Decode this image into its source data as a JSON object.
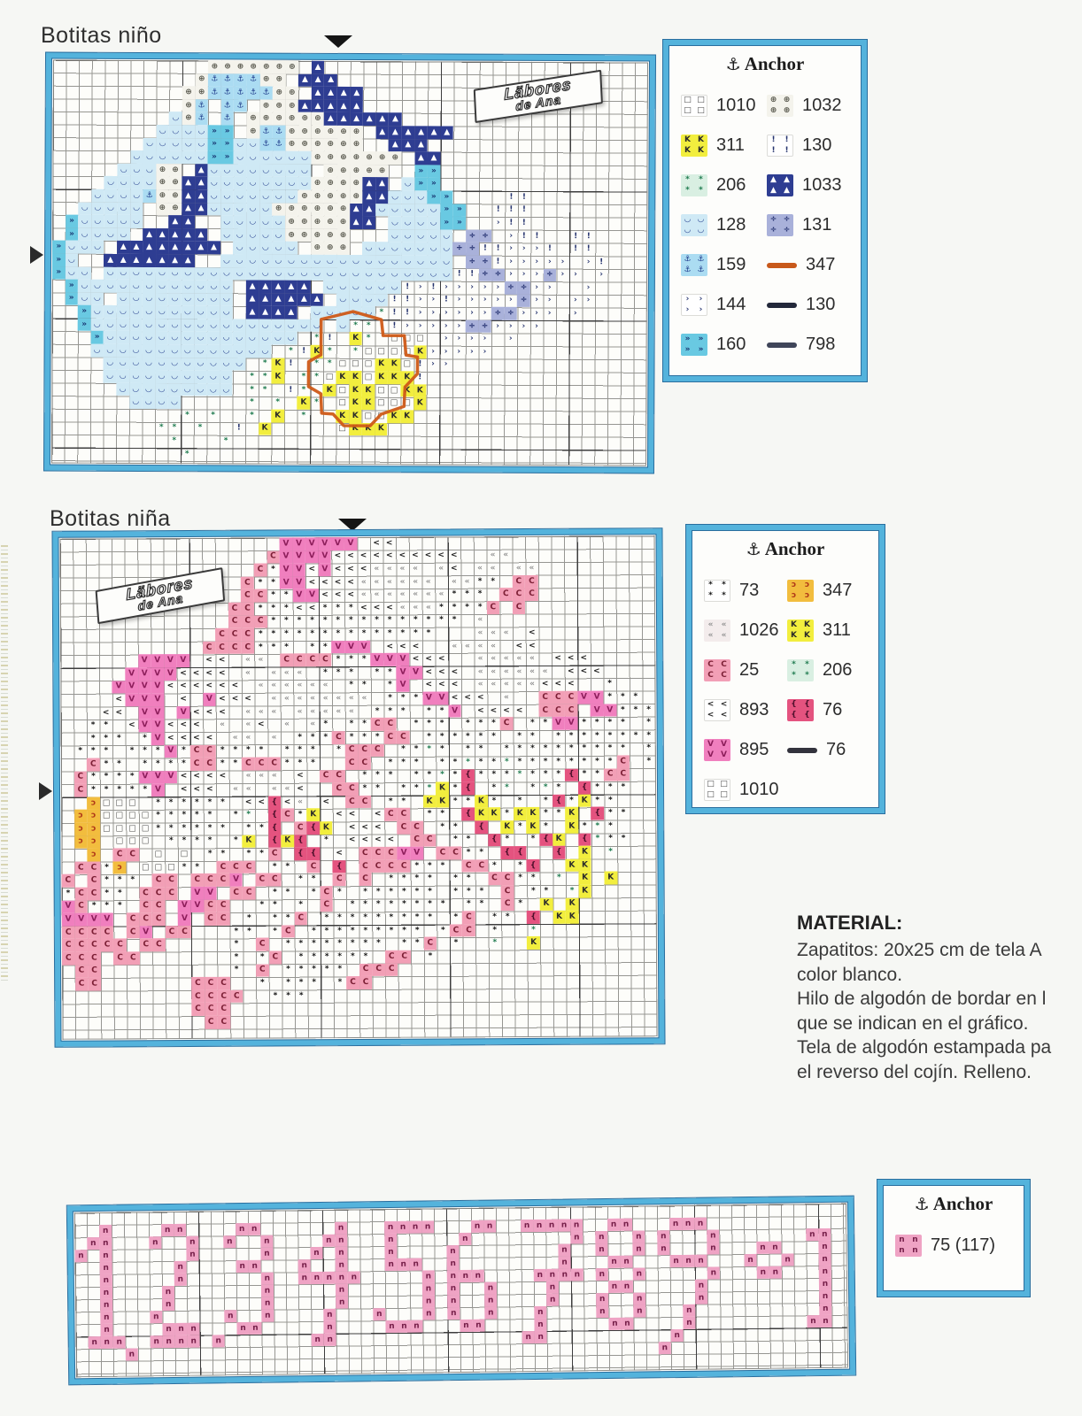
{
  "brand": {
    "line1": "Läbores",
    "line2": "de Ana"
  },
  "material": {
    "heading": "MATERIAL:",
    "lines": [
      "Zapatitos: 20x25 cm de tela A",
      "color blanco.",
      "Hilo de algodón de bordar en l",
      "que se indican en el gráfico.",
      "Tela de algodón estampada pa",
      "el reverso del cojín. Relleno."
    ]
  },
  "palettes": {
    "p1": {
      "s": {
        "bg": "#cfe9f5",
        "fg": "#27418f",
        "ch": "◡"
      },
      "a": {
        "bg": "#abdcf2",
        "fg": "#1d3a8a",
        "ch": "⚓"
      },
      "c": {
        "bg": "#69c9e2",
        "fg": "#17336f",
        "ch": "»"
      },
      "t": {
        "bg": "#2e3d92",
        "fg": "#ffffff",
        "ch": "▲"
      },
      "g": {
        "bg": "#f4f3ec",
        "fg": "#55554a",
        "ch": "⊕"
      },
      "d": {
        "bg": "#a9b1da",
        "fg": "#1d2a6a",
        "ch": "÷"
      },
      "e": {
        "fg": "#27356f",
        "ch": "!"
      },
      "r": {
        "fg": "#27356f",
        "ch": "›"
      },
      "k": {
        "bg": "#f2ee3e",
        "fg": "#2a2a2a",
        "ch": "K"
      },
      "q": {
        "fg": "#4a4a4a",
        "ch": "□"
      },
      "z": {
        "fg": "#1d7a4e",
        "ch": "*",
        "lbg": "#d9efe2"
      }
    },
    "p2": {
      "C": {
        "bg": "#f29fb6",
        "fg": "#7c1f35",
        "ch": "C"
      },
      "V": {
        "bg": "#f07fbe",
        "fg": "#8c1d5a",
        "ch": "V"
      },
      "<": {
        "fg": "#1f1f1f",
        "ch": "<"
      },
      "«": {
        "fg": "#8e8e8e",
        "ch": "«",
        "lbg": "#f3ecec"
      },
      "*": {
        "fg": "#141414",
        "ch": "*"
      },
      "f": {
        "bg": "#e4537f",
        "fg": "#4c0f2a",
        "ch": "{"
      },
      "k": {
        "bg": "#f2ee3e",
        "fg": "#2a2a2a",
        "ch": "K"
      },
      "y": {
        "bg": "#f2bd3e",
        "fg": "#b03818",
        "ch": "ɔ"
      },
      "q": {
        "fg": "#4a4a4a",
        "ch": "□"
      },
      "z": {
        "fg": "#1d7a4e",
        "ch": "*",
        "lbg": "#d9efe2"
      }
    },
    "p3": {
      "n": {
        "bg": "#efa3c4",
        "fg": "#77204a",
        "ch": "n"
      }
    }
  },
  "charts": {
    "nino": {
      "title": "Botitas niño",
      "cols": 46,
      "rows": 31,
      "cell": 14.6,
      "palette": "p1",
      "grid": [
        "............ggggggg.t",
        "...........gaaaagg.ttt",
        "..........ggaaaaagg.tttt",
        "..........ga.aa.gggttttt",
        ".........sga.a.ggggggtttttt",
        "........sssscc.gaagggggg.tttttt",
        ".......sssssccssaagggggg..ttt",
        "......ssssssccssssssggggggg.tt",
        ".....sssgg.tssssssss.ggggg..cc",
        "....ssssggttssssssssggggtt.scc",
        "...ssssaggttsssssssgggggttssscc....ee",
        "..sssss.ggttsssssggggggttssssscc..eee",
        ".csssss..tt..sssssgggggtt.sssscc..ree",
        ".cssss.ttttt.sssssggggg...sssss.dd.ree..ee",
        "csss.tttttttt.sssss.ggg.sssssssddeerrre.ee",
        "cs..ttttttt..ssssssssssssssssss.dderrrrr.re",
        "css.ssssssssssssssssssssssssssseeddrrrdrr.r",
        ".cssssssssssss.ttttt.ssssssererrrrrddrr..r",
        ".css.sssssssss.tttttt.sssseerrerrrrrdrr.rr",
        "..csssssssssss.tttt.ssssszeerrrrrrddrrr.r",
        "..cssssssssssssssssss.szz.errrrrddrrrr",
        "...csssssssssssssss.ze.kz.qqq.rrrr.r",
        "...ssssssssssssss.zekz.zqqqqkrrrrr",
        "....sssssssssss.zke.zzqqqkkqerr",
        "....ssssssssss.zzk.zzqkkqkkke",
        ".....sssssssss.zz.ez.kqkkqqkk",
        "......ssss.....z.z.kz.qkkqqqk",
        "..........z.z..z.k.z..kkqqkk",
        "........zz.z..e.k.....qkkk",
        ".........z...z",
        "..........z"
      ]
    },
    "nina": {
      "title": "Botitas niña",
      "cols": 46,
      "rows": 38,
      "cell": 14.6,
      "palette": "p2",
      "grid": [
        ".................VVVVVV.<<",
        "................CVVVV<<<<<<<<<<..««",
        "...............C*VV<V<<<««««.«<.««.««",
        "..............C**VV<<<<««««««.««**.CC",
        "..............CC**VV<<<«««««««***.CCC",
        ".............CC***<<***<<<«««****C.C",
        ".............CCC***************.«",
        "............CCC**************...«««.<",
        "...........CCCC***.**VVV.<<<..««««.<<",
        "......VVVV.<<.««.CCCC***VVV<<<..«««««.<<<",
        ".....VVVV<<<<.«.«««.***.**VV<<<.««««««.<<<",
        "....VVVV<<<<<<.««««««.**.*V.<<<.«««««<<<..*",
        "....<VVV.<.V<<<.««««««««.***VV<<<.«..CCCVV***",
        "...<<.VV.V<<<.«««.«««««.***.**V.<<<<.CCC.VV***",
        "..**.<VV<<<.«.«<.«.«*.**CC.***.***C.**VV****.*",
        "..***.*V<<<<.««.«.***C***CC.******.**.********",
        ".***.***V*CC****.***.*CCC.**z*.**.**********.*",
        "..C**.****CC**CCC***..CC.***.**z**z********C.*",
        ".C****VVV<<<<.«««.<.CC.***.**z*f***z***f**CC",
        ".C*****V.<<<.««.««<..CC**.**zk*f.*z.*z*.f***",
        "..yqqq.******.<<f<«.<.CC.**.kk**k*.*.*f*k**",
        ".yyqqqq*****.*z.fC*k.<<.<CC.**.fkk*kk**k.f**",
        ".yyqqqq******.**f.Cfk.<<<.CC.**.f.k*k*.k*z*",
        ".yy.qqq.****.*k.fkf.*.<<<<.CC.**.f*.*fk.fz**",
        "..y.CC.q.q.**.**C.ff.<.CCCVV.CC**.ff..f.k.z",
        ".CC*y.qqq**.CCC.**.C.f.CCCC***.CC*.*f..kk",
        "C.C***.CC.CCCV.CC.**.C.C.****.**.CC**.z.k.k",
        "*CC**.CCC.VV.CC.**.*C*.******.***.C.**.zk",
        "VC***.CC.VVCC..**.*.C.********.**.C*.k.k",
        "VVVV.CCC.V.CC.*.**C.*********.*C.**.f.kk",
        "CCCC.CV.CC...**.*C.*********.*CC.*..z",
        "CCCCC.CC.....*.C.********.**C.*..z..k",
        "CCC.CC.......*.*C.******.CC.*",
        ".CC..........*.C.*****.CCC",
        ".CC.......CCC..*.***.*CC",
        "..........CCCC..***",
        "..........CCC",
        "...........CC"
      ]
    },
    "numbers": {
      "title": "",
      "cols": 62,
      "rows": 13,
      "cell": 14,
      "palette": "p3",
      "grid": [
        "",
        "..n....nn....nn......n...nnnn...nn..nnnnn..nn...nnn",
        ".nn...n..n..n..n....nn...n.....n........n.n..n.n...n.......nn",
        "n.n......n.....n...n.n...n....n........n..n..n.n...n...nn...n",
        "..n.....n....nn...n..n...nnn..n........n...nn...nnn...n..n..n",
        "..n.....n......n..nnnnn.....n.nnn....nnnn.n..n.....n...nn...n",
        "..n....n.......n.....n......n.n..n....n....nn.....n.........n",
        "..n....n.......n.....n......n.n..n....n...n..n....n.........n",
        "..n...n.....n..n....n...n...n.n..n...n....n..n...n..........n",
        "..n....nnn...nn.....n....nnn...nn....n.....nn....n.........nn",
        ".nnn..nnnn.n.......nn...............nn..........n",
        "....n..........................................n",
        ""
      ]
    }
  },
  "legends": {
    "lg1": {
      "header": "Anchor",
      "columns": [
        [
          {
            "code": "1010",
            "pal": "p1",
            "sw": "q"
          },
          {
            "code": "311",
            "pal": "p1",
            "sw": "k"
          },
          {
            "code": "206",
            "pal": "p1",
            "sw": "z"
          },
          {
            "code": "128",
            "pal": "p1",
            "sw": "s"
          },
          {
            "code": "159",
            "pal": "p1",
            "sw": "a"
          },
          {
            "code": "144",
            "pal": "p1",
            "sw": "r"
          },
          {
            "code": "160",
            "pal": "p1",
            "sw": "c"
          }
        ],
        [
          {
            "code": "1032",
            "pal": "p1",
            "sw": "g"
          },
          {
            "code": "130",
            "pal": "p1",
            "sw": "e"
          },
          {
            "code": "1033",
            "pal": "p1",
            "sw": "t"
          },
          {
            "code": "131",
            "pal": "p1",
            "sw": "d"
          },
          {
            "code": "347",
            "line": "#c8591b"
          },
          {
            "code": "130",
            "line": "#23283a"
          },
          {
            "code": "798",
            "line": "#3f4559"
          }
        ]
      ]
    },
    "lg2": {
      "header": "Anchor",
      "columns": [
        [
          {
            "code": "73",
            "pal": "p2",
            "sw": "*"
          },
          {
            "code": "1026",
            "pal": "p2",
            "sw": "«"
          },
          {
            "code": "25",
            "pal": "p2",
            "sw": "C"
          },
          {
            "code": "893",
            "pal": "p2",
            "sw": "<"
          },
          {
            "code": "895",
            "pal": "p2",
            "sw": "V"
          },
          {
            "code": "1010",
            "pal": "p2",
            "sw": "q"
          }
        ],
        [
          {
            "code": "347",
            "pal": "p2",
            "sw": "y"
          },
          {
            "code": "311",
            "pal": "p2",
            "sw": "k"
          },
          {
            "code": "206",
            "pal": "p2",
            "sw": "z"
          },
          {
            "code": "76",
            "pal": "p2",
            "sw": "f"
          },
          {
            "code": "76",
            "line": "#33333d"
          }
        ]
      ]
    },
    "lg3": {
      "header": "Anchor",
      "columns": [
        [
          {
            "code": "75 (117)",
            "pal": "p3",
            "sw": "n"
          }
        ]
      ]
    }
  },
  "accent_colors": {
    "chart_border_cyan": "#54b3dc",
    "backstitch_orange": "#cf5a17",
    "grid_line": "#969692"
  }
}
